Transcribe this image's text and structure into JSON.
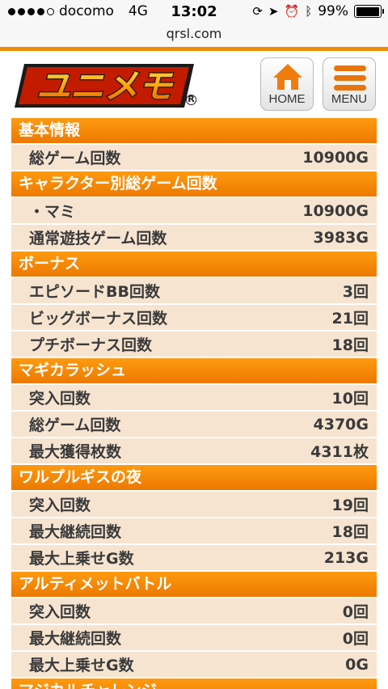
{
  "status_bar": {
    "carrier": "docomo",
    "network": "4G",
    "time": "13:02",
    "battery": "99%",
    "battery_level": 0.99,
    "signal_filled": 4,
    "signal_total": 5
  },
  "browser": {
    "url": "qrsl.com"
  },
  "header": {
    "logo_text": "ユニメモ",
    "home_label": "HOME",
    "menu_label": "MENU"
  },
  "colors": {
    "accent": "#f08a00",
    "row_bg": "#f6e4d1",
    "header_bg": "#ec7900"
  },
  "sections": [
    {
      "title": "基本情報",
      "rows": [
        {
          "label": "総ゲーム回数",
          "value": "10900G"
        }
      ]
    },
    {
      "title": "キャラクター別総ゲーム回数",
      "rows": [
        {
          "label": "・マミ",
          "value": "10900G"
        },
        {
          "label": "通常遊技ゲーム回数",
          "value": "3983G"
        }
      ]
    },
    {
      "title": "ボーナス",
      "rows": [
        {
          "label": "エピソードBB回数",
          "value": "3回"
        },
        {
          "label": "ビッグボーナス回数",
          "value": "21回"
        },
        {
          "label": "プチボーナス回数",
          "value": "18回"
        }
      ]
    },
    {
      "title": "マギカラッシュ",
      "rows": [
        {
          "label": "突入回数",
          "value": "10回"
        },
        {
          "label": "総ゲーム回数",
          "value": "4370G"
        },
        {
          "label": "最大獲得枚数",
          "value": "4311枚"
        }
      ]
    },
    {
      "title": "ワルプルギスの夜",
      "rows": [
        {
          "label": "突入回数",
          "value": "19回"
        },
        {
          "label": "最大継続回数",
          "value": "18回"
        },
        {
          "label": "最大上乗せG数",
          "value": "213G"
        }
      ]
    },
    {
      "title": "アルティメットバトル",
      "rows": [
        {
          "label": "突入回数",
          "value": "0回"
        },
        {
          "label": "最大継続回数",
          "value": "0回"
        },
        {
          "label": "最大上乗せG数",
          "value": "0G"
        }
      ]
    },
    {
      "title": "マジカルチャレンジ",
      "rows": []
    }
  ]
}
